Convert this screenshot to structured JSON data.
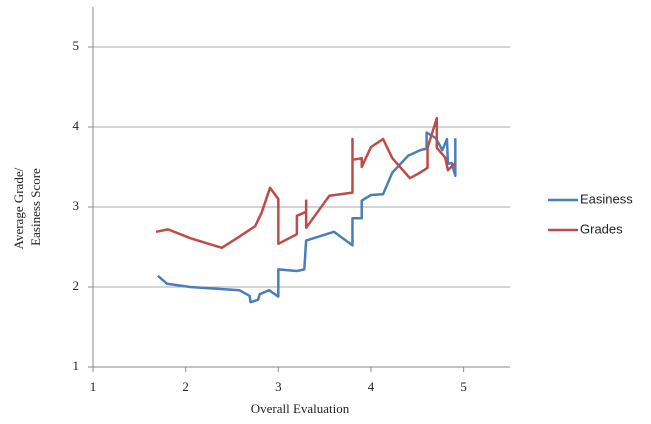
{
  "chart_data": {
    "type": "line",
    "xlabel": "Overall Evaluation",
    "ylabel": [
      "Average Grade/",
      "Easiness Score"
    ],
    "xlim": [
      1,
      5.5
    ],
    "xticks": [
      1,
      2,
      3,
      4,
      5
    ],
    "ylim": [
      1,
      5.5
    ],
    "yticks": [
      1,
      2,
      3,
      4,
      5
    ],
    "grid": true,
    "legend": "right",
    "series": [
      {
        "name": "Easiness",
        "color": "#4a7ebb",
        "x": [
          1.7,
          1.8,
          2.05,
          2.58,
          2.69,
          2.7,
          2.78,
          2.8,
          2.9,
          3.0,
          3.0,
          3.2,
          3.28,
          3.3,
          3.6,
          3.8,
          3.8,
          3.9,
          3.9,
          4.0,
          4.13,
          4.23,
          4.4,
          4.53,
          4.6,
          4.6,
          4.7,
          4.77,
          4.82,
          4.83,
          4.87,
          4.91,
          4.91
        ],
        "values": [
          2.14,
          2.04,
          2.0,
          1.96,
          1.89,
          1.81,
          1.84,
          1.91,
          1.96,
          1.88,
          2.22,
          2.2,
          2.22,
          2.58,
          2.69,
          2.52,
          2.86,
          2.86,
          3.08,
          3.15,
          3.16,
          3.43,
          3.64,
          3.71,
          3.73,
          3.93,
          3.86,
          3.71,
          3.85,
          3.54,
          3.55,
          3.39,
          3.86
        ]
      },
      {
        "name": "Grades",
        "color": "#be4b48",
        "x": [
          1.68,
          1.81,
          2.05,
          2.39,
          2.58,
          2.75,
          2.82,
          2.91,
          3.0,
          3.0,
          3.2,
          3.2,
          3.3,
          3.3,
          3.3,
          3.55,
          3.8,
          3.8,
          3.8,
          3.9,
          3.9,
          4.0,
          4.13,
          4.23,
          4.42,
          4.53,
          4.61,
          4.61,
          4.71,
          4.71,
          4.8,
          4.83,
          4.91
        ],
        "values": [
          2.69,
          2.72,
          2.61,
          2.49,
          2.63,
          2.76,
          2.93,
          3.24,
          3.1,
          2.54,
          2.66,
          2.89,
          2.94,
          3.08,
          2.74,
          3.14,
          3.18,
          3.85,
          3.59,
          3.61,
          3.5,
          3.75,
          3.85,
          3.61,
          3.36,
          3.43,
          3.49,
          3.74,
          4.11,
          3.74,
          3.62,
          3.46,
          3.55
        ]
      }
    ]
  }
}
